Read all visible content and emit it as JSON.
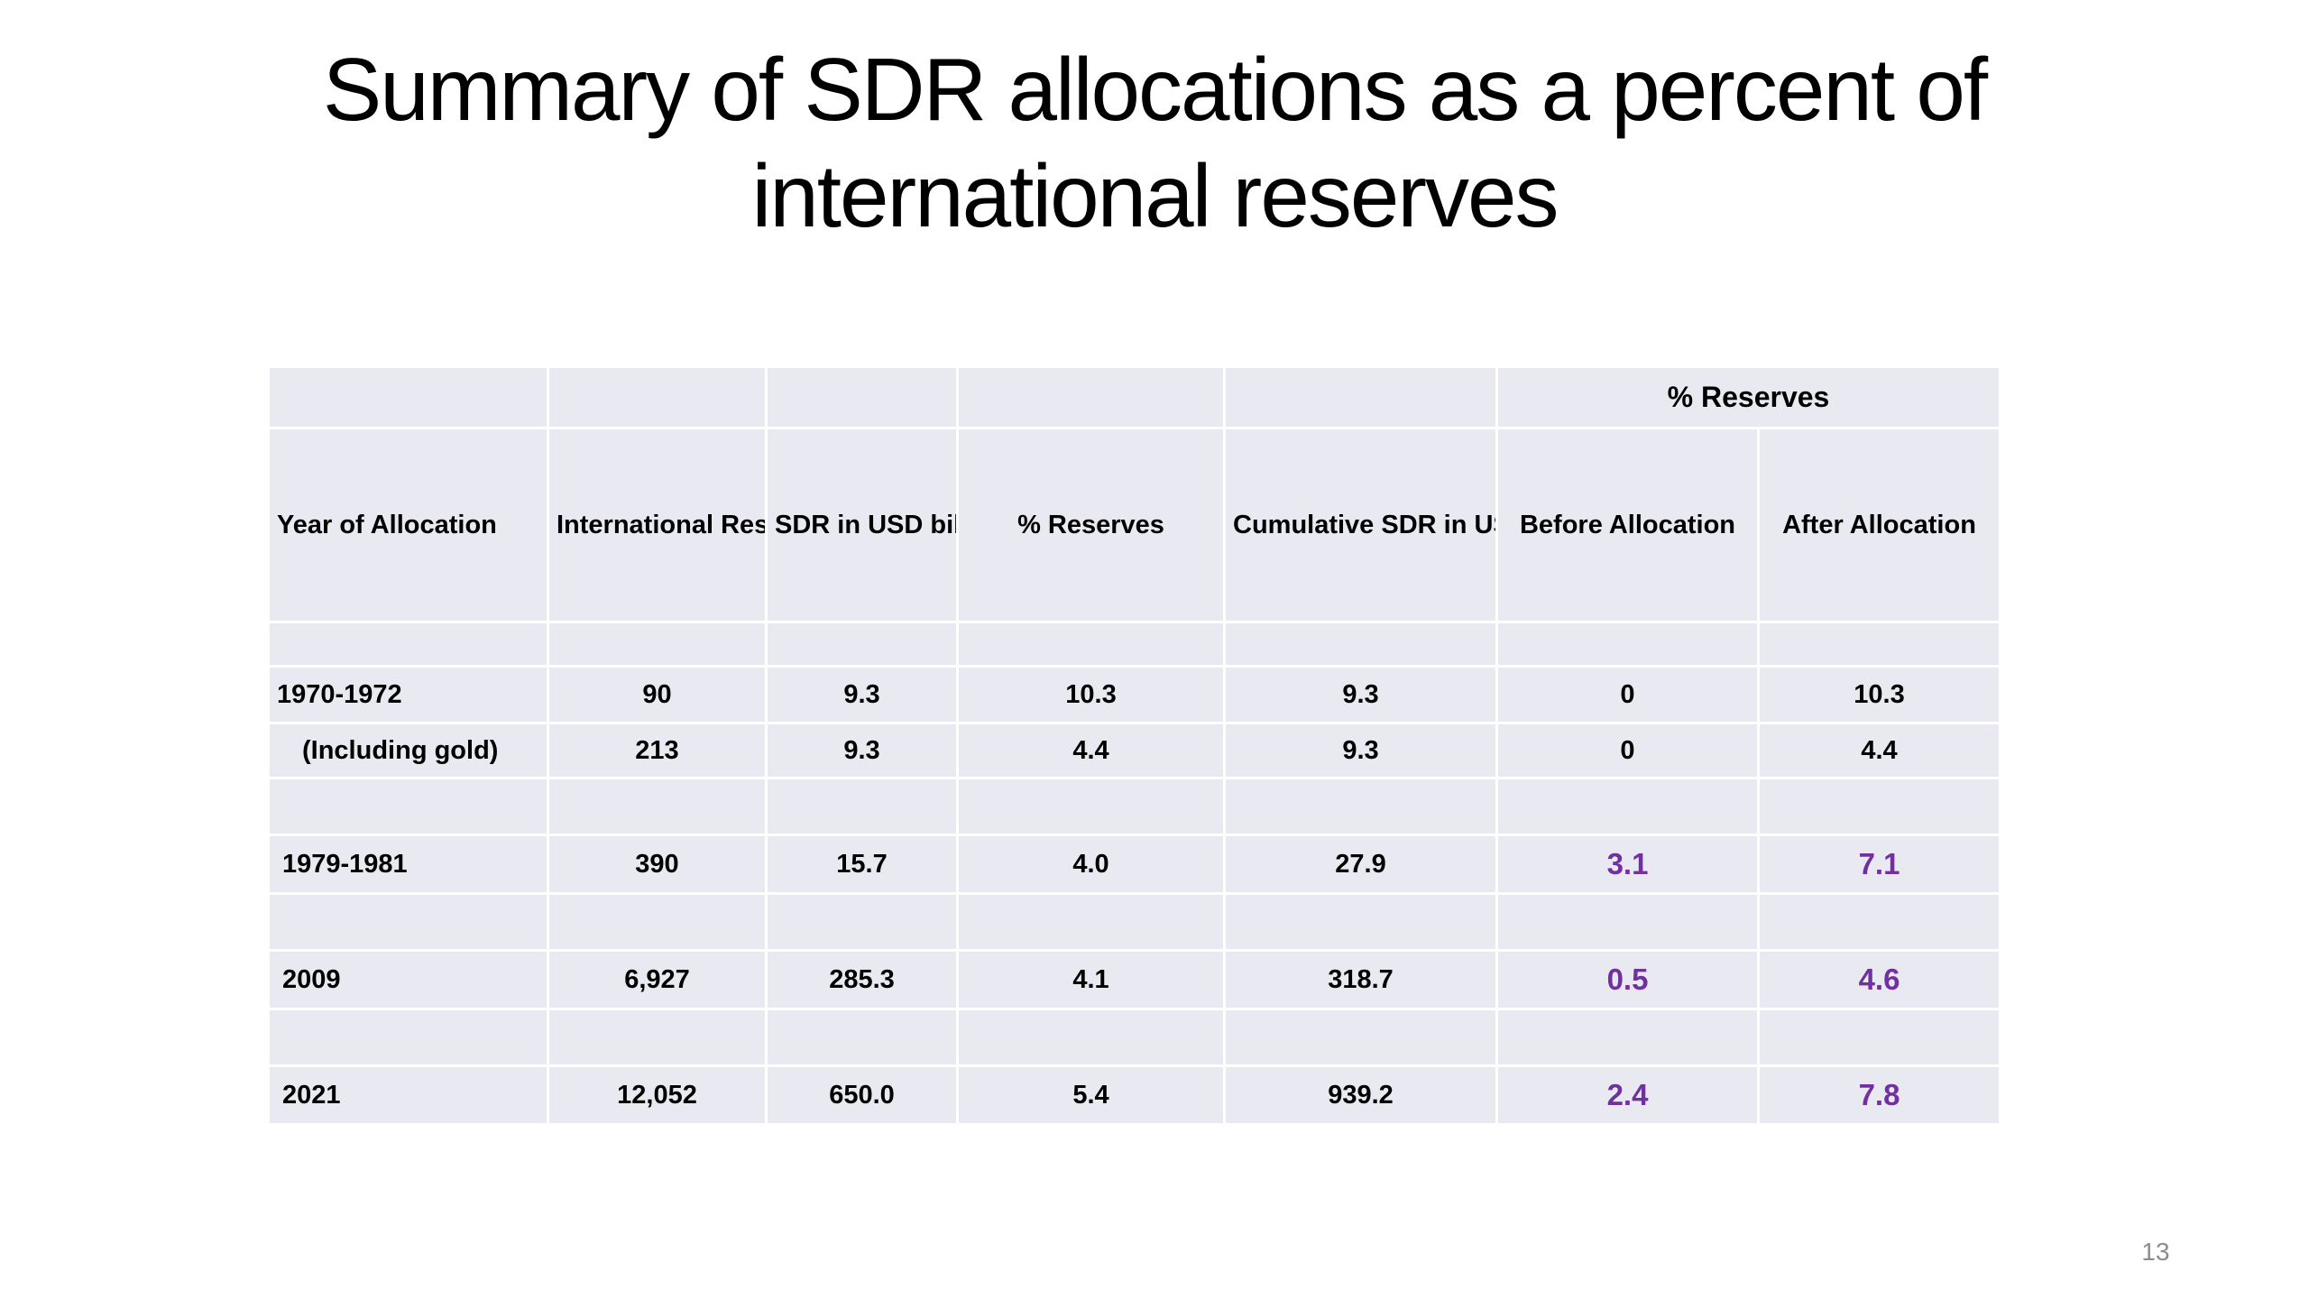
{
  "slide": {
    "title_line1": "Summary of SDR allocations as a percent of",
    "title_line2": "international reserves",
    "page_number": "13"
  },
  "table": {
    "super_header": "% Reserves",
    "headers": [
      "Year of Allocation",
      "International Reserves USD bil",
      "SDR in USD bil",
      "% Reserves",
      "Cumulative SDR in USD bil",
      "Before  Allocation",
      "After Allocation"
    ],
    "rows": [
      [
        "1970-1972",
        "90",
        "9.3",
        "10.3",
        "9.3",
        "0",
        "10.3"
      ],
      [
        "(Including gold)",
        "213",
        "9.3",
        "4.4",
        "9.3",
        "0",
        "4.4"
      ],
      [
        "1979-1981",
        "390",
        "15.7",
        "4.0",
        "27.9",
        "3.1",
        "7.1"
      ],
      [
        "2009",
        "6,927",
        "285.3",
        "4.1",
        "318.7",
        "0.5",
        "4.6"
      ],
      [
        "2021",
        "12,052",
        "650.0",
        "5.4",
        "939.2",
        "2.4",
        "7.8"
      ]
    ],
    "highlight_color": "#7030a0"
  }
}
